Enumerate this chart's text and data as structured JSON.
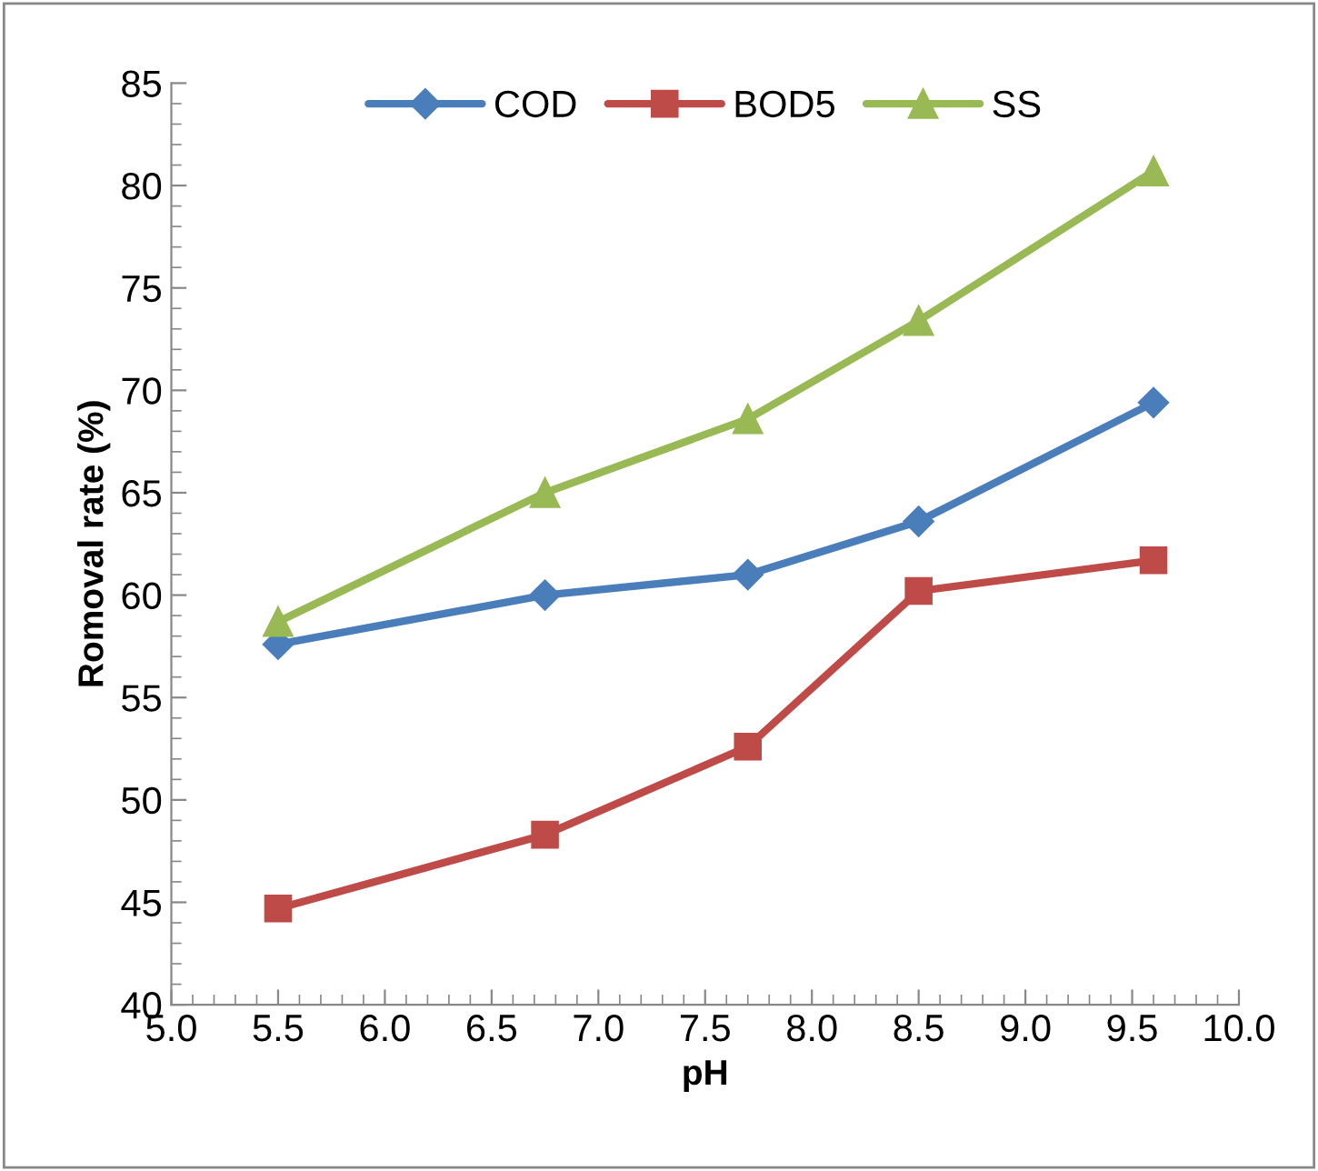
{
  "chart_data": {
    "type": "line",
    "xlabel": "pH",
    "ylabel": "Romoval rate (%)",
    "xlim": [
      5.0,
      10.0
    ],
    "xticks": [
      {
        "value": 5.0,
        "label": "5.0"
      },
      {
        "value": 5.5,
        "label": "5.5"
      },
      {
        "value": 6.0,
        "label": "6.0"
      },
      {
        "value": 6.5,
        "label": "6.5"
      },
      {
        "value": 7.0,
        "label": "7.0"
      },
      {
        "value": 7.5,
        "label": "7.5"
      },
      {
        "value": 8.0,
        "label": "8.0"
      },
      {
        "value": 8.5,
        "label": "8.5"
      },
      {
        "value": 9.0,
        "label": "9.0"
      },
      {
        "value": 9.5,
        "label": "9.5"
      },
      {
        "value": 10.0,
        "label": "10.0"
      }
    ],
    "ylim": [
      40,
      85
    ],
    "yticks": [
      40,
      45,
      50,
      55,
      60,
      65,
      70,
      75,
      80,
      85
    ],
    "x": [
      5.5,
      6.75,
      7.7,
      8.5,
      9.6
    ],
    "series": [
      {
        "name": "COD",
        "color": "#4a7ebb",
        "marker": "diamond",
        "values": [
          57.6,
          60.0,
          61.0,
          63.6,
          69.4
        ]
      },
      {
        "name": "BOD5",
        "color": "#be4b48",
        "marker": "square",
        "values": [
          44.7,
          48.3,
          52.6,
          60.2,
          61.7
        ]
      },
      {
        "name": "SS",
        "color": "#98b954",
        "marker": "triangle",
        "values": [
          58.7,
          65.0,
          68.6,
          73.4,
          80.7
        ]
      }
    ],
    "legend": "top",
    "grid": false,
    "line_style": "solid"
  }
}
